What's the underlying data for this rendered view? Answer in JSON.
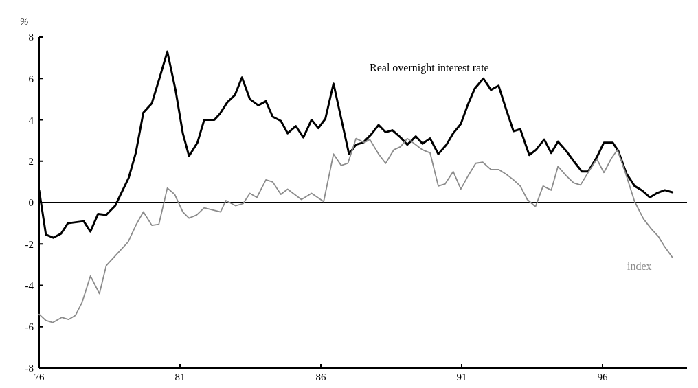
{
  "chart_data": {
    "type": "line",
    "ylabel": "%",
    "xlim": [
      76,
      99
    ],
    "ylim": [
      -8,
      8
    ],
    "xticks": [
      76,
      81,
      86,
      91,
      96
    ],
    "yticks": [
      -8,
      -6,
      -4,
      -2,
      0,
      2,
      4,
      6,
      8
    ],
    "grid": false,
    "legend": false,
    "marker": "none",
    "ref_lines": [
      {
        "axis": "y",
        "value": 0,
        "color": "#000000"
      }
    ],
    "series": [
      {
        "name": "Real overnight interest rate",
        "color": "#000000",
        "line_style": "solid",
        "x": [
          76.0,
          76.24,
          76.5,
          76.78,
          77.02,
          77.3,
          77.58,
          77.82,
          78.09,
          78.38,
          78.7,
          79.18,
          79.43,
          79.7,
          80.0,
          80.28,
          80.55,
          80.84,
          81.1,
          81.32,
          81.62,
          81.86,
          82.22,
          82.42,
          82.68,
          82.95,
          83.2,
          83.48,
          83.78,
          84.05,
          84.29,
          84.58,
          84.82,
          85.11,
          85.38,
          85.67,
          85.91,
          86.16,
          86.45,
          87.0,
          87.25,
          87.5,
          87.79,
          88.05,
          88.3,
          88.54,
          88.83,
          89.07,
          89.37,
          89.61,
          89.88,
          90.17,
          90.46,
          90.7,
          90.97,
          91.21,
          91.46,
          91.77,
          92.04,
          92.31,
          92.57,
          92.84,
          93.08,
          93.4,
          93.64,
          93.93,
          94.18,
          94.42,
          94.71,
          94.98,
          95.27,
          95.49,
          95.8,
          96.05,
          96.36,
          96.56,
          96.85,
          97.14,
          97.39,
          97.68,
          97.92,
          98.21,
          98.48
        ],
        "values": [
          0.6,
          -1.55,
          -1.7,
          -1.5,
          -1.0,
          -0.95,
          -0.9,
          -1.4,
          -0.55,
          -0.6,
          -0.15,
          1.2,
          2.4,
          4.35,
          4.8,
          6.05,
          7.3,
          5.45,
          3.35,
          2.25,
          2.9,
          4.0,
          4.0,
          4.3,
          4.85,
          5.2,
          6.05,
          5.0,
          4.7,
          4.9,
          4.15,
          3.95,
          3.35,
          3.7,
          3.15,
          4.0,
          3.6,
          4.05,
          5.75,
          2.35,
          2.8,
          2.9,
          3.3,
          3.75,
          3.4,
          3.5,
          3.15,
          2.8,
          3.2,
          2.85,
          3.1,
          2.35,
          2.8,
          3.35,
          3.8,
          4.7,
          5.5,
          6.0,
          5.45,
          5.65,
          4.55,
          3.45,
          3.55,
          2.3,
          2.55,
          3.05,
          2.4,
          2.95,
          2.5,
          2.0,
          1.5,
          1.5,
          2.2,
          2.9,
          2.9,
          2.5,
          1.4,
          0.8,
          0.6,
          0.25,
          0.45,
          0.6,
          0.5
        ]
      },
      {
        "name": "index",
        "color": "#8c8c8c",
        "line_style": "solid",
        "x": [
          76.0,
          76.24,
          76.48,
          76.8,
          77.04,
          77.29,
          77.53,
          77.82,
          78.14,
          78.38,
          78.75,
          79.16,
          79.45,
          79.7,
          80.0,
          80.25,
          80.55,
          80.81,
          81.1,
          81.32,
          81.59,
          81.86,
          82.15,
          82.44,
          82.63,
          82.97,
          83.24,
          83.48,
          83.73,
          84.05,
          84.29,
          84.58,
          84.82,
          85.31,
          85.67,
          86.1,
          86.45,
          86.72,
          86.96,
          87.25,
          87.54,
          87.74,
          88.05,
          88.3,
          88.59,
          88.83,
          89.07,
          89.37,
          89.61,
          89.88,
          90.17,
          90.41,
          90.7,
          90.97,
          91.21,
          91.5,
          91.75,
          92.04,
          92.31,
          92.6,
          92.84,
          93.08,
          93.33,
          93.62,
          93.89,
          94.18,
          94.42,
          94.71,
          94.98,
          95.22,
          95.51,
          95.8,
          96.05,
          96.32,
          96.53,
          96.8,
          97.14,
          97.46,
          97.75,
          97.99,
          98.19,
          98.48
        ],
        "values": [
          -5.4,
          -5.7,
          -5.8,
          -5.55,
          -5.65,
          -5.45,
          -4.8,
          -3.55,
          -4.4,
          -3.05,
          -2.5,
          -1.9,
          -1.05,
          -0.45,
          -1.1,
          -1.05,
          0.7,
          0.4,
          -0.45,
          -0.75,
          -0.6,
          -0.25,
          -0.35,
          -0.45,
          0.1,
          -0.15,
          -0.05,
          0.45,
          0.25,
          1.1,
          1.0,
          0.4,
          0.65,
          0.15,
          0.45,
          0.05,
          2.35,
          1.8,
          1.9,
          3.1,
          2.9,
          3.05,
          2.35,
          1.9,
          2.55,
          2.7,
          3.1,
          2.8,
          2.55,
          2.4,
          0.8,
          0.9,
          1.5,
          0.65,
          1.25,
          1.9,
          1.95,
          1.6,
          1.6,
          1.35,
          1.1,
          0.8,
          0.15,
          -0.2,
          0.8,
          0.6,
          1.75,
          1.3,
          0.95,
          0.85,
          1.5,
          2.1,
          1.45,
          2.15,
          2.55,
          1.5,
          0.05,
          -0.8,
          -1.3,
          -1.65,
          -2.1,
          -2.65
        ]
      }
    ]
  }
}
